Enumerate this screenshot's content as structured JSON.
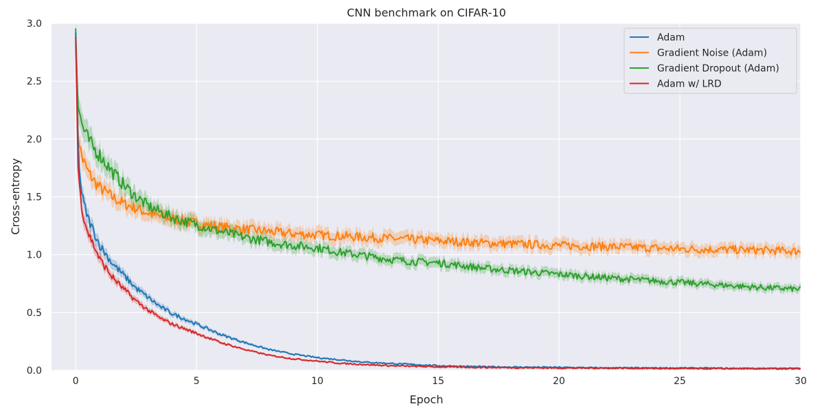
{
  "chart_data": {
    "type": "line",
    "title": "CNN benchmark on CIFAR-10",
    "xlabel": "Epoch",
    "ylabel": "Cross-entropy",
    "xlim": [
      -1,
      30
    ],
    "ylim": [
      0,
      3.0
    ],
    "x_ticks": [
      0,
      5,
      10,
      15,
      20,
      25,
      30
    ],
    "y_ticks": [
      0.0,
      0.5,
      1.0,
      1.5,
      2.0,
      2.5,
      3.0
    ],
    "x_tick_labels": [
      "0",
      "5",
      "10",
      "15",
      "20",
      "25",
      "30"
    ],
    "y_tick_labels": [
      "0.0",
      "0.5",
      "1.0",
      "1.5",
      "2.0",
      "2.5",
      "3.0"
    ],
    "grid": true,
    "legend_position": "top-right",
    "style": {
      "background": "#eaeaf2",
      "grid_color": "#ffffff"
    },
    "series": [
      {
        "name": "Adam",
        "color": "#1f77b4",
        "x": [
          0,
          0.1,
          0.2,
          0.3,
          0.5,
          0.75,
          1,
          1.5,
          2,
          2.5,
          3,
          3.5,
          4,
          5,
          6,
          7,
          8,
          9,
          10,
          11,
          12,
          13,
          14,
          15,
          17,
          20,
          22,
          25,
          28,
          30
        ],
        "y": [
          2.9,
          1.95,
          1.62,
          1.47,
          1.32,
          1.2,
          1.08,
          0.93,
          0.82,
          0.71,
          0.63,
          0.55,
          0.49,
          0.4,
          0.31,
          0.24,
          0.18,
          0.14,
          0.11,
          0.09,
          0.07,
          0.06,
          0.05,
          0.04,
          0.03,
          0.025,
          0.02,
          0.02,
          0.015,
          0.015
        ]
      },
      {
        "name": "Gradient Noise (Adam)",
        "color": "#ff7f0e",
        "x": [
          0,
          0.1,
          0.2,
          0.3,
          0.5,
          0.75,
          1,
          1.5,
          2,
          2.5,
          3,
          3.5,
          4,
          5,
          6,
          7,
          8,
          9,
          10,
          11,
          12,
          13,
          14,
          15,
          17,
          20,
          22,
          25,
          28,
          30
        ],
        "y": [
          2.9,
          2.05,
          1.9,
          1.82,
          1.72,
          1.64,
          1.58,
          1.5,
          1.44,
          1.4,
          1.36,
          1.33,
          1.31,
          1.27,
          1.24,
          1.22,
          1.2,
          1.18,
          1.17,
          1.16,
          1.15,
          1.14,
          1.13,
          1.12,
          1.1,
          1.08,
          1.07,
          1.05,
          1.04,
          1.03
        ]
      },
      {
        "name": "Gradient Dropout (Adam)",
        "color": "#2ca02c",
        "x": [
          0,
          0.1,
          0.2,
          0.3,
          0.5,
          0.75,
          1,
          1.5,
          2,
          2.5,
          3,
          3.5,
          4,
          5,
          6,
          7,
          8,
          9,
          10,
          11,
          12,
          13,
          14,
          15,
          17,
          20,
          22,
          25,
          28,
          30
        ],
        "y": [
          3.0,
          2.3,
          2.18,
          2.1,
          2.0,
          1.92,
          1.86,
          1.72,
          1.6,
          1.5,
          1.42,
          1.37,
          1.32,
          1.26,
          1.2,
          1.15,
          1.11,
          1.08,
          1.06,
          1.02,
          0.99,
          0.96,
          0.94,
          0.93,
          0.88,
          0.83,
          0.8,
          0.76,
          0.72,
          0.7
        ]
      },
      {
        "name": "Adam w/ LRD",
        "color": "#d62728",
        "x": [
          0,
          0.1,
          0.2,
          0.3,
          0.5,
          0.75,
          1,
          1.5,
          2,
          2.5,
          3,
          3.5,
          4,
          5,
          6,
          7,
          8,
          9,
          10,
          11,
          12,
          13,
          14,
          15,
          17,
          20,
          22,
          25,
          28,
          30
        ],
        "y": [
          2.9,
          1.75,
          1.5,
          1.36,
          1.2,
          1.08,
          0.96,
          0.81,
          0.7,
          0.6,
          0.52,
          0.45,
          0.4,
          0.32,
          0.24,
          0.18,
          0.13,
          0.1,
          0.08,
          0.06,
          0.05,
          0.04,
          0.035,
          0.03,
          0.025,
          0.02,
          0.02,
          0.015,
          0.015,
          0.015
        ]
      }
    ]
  }
}
